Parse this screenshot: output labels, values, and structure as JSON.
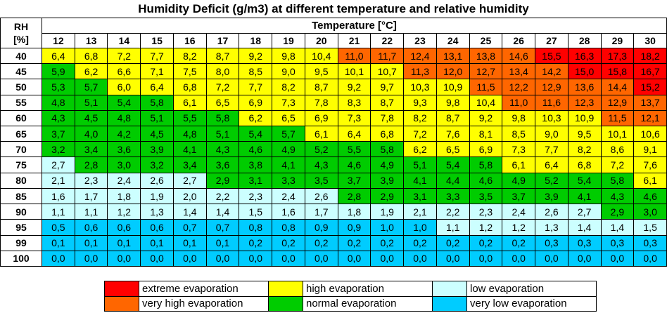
{
  "title": "Humidity Deficit (g/m3) at different temperature and relative humidity",
  "rh_header_line1": "RH",
  "rh_header_line2": "[%]",
  "temp_header": "Temperature [°C]",
  "colors": {
    "extreme": "#ff0000",
    "very_high": "#ff6600",
    "high": "#ffff00",
    "normal": "#00cc00",
    "low": "#ccffff",
    "very_low": "#00ccff"
  },
  "legend": [
    {
      "label": "extreme evaporation",
      "level": "extreme"
    },
    {
      "label": "high evaporation",
      "level": "high"
    },
    {
      "label": "low evaporation",
      "level": "low"
    },
    {
      "label": "very high evaporation",
      "level": "very_high"
    },
    {
      "label": "normal evaporation",
      "level": "normal"
    },
    {
      "label": "very low evaporation",
      "level": "very_low"
    }
  ],
  "chart_data": {
    "type": "heatmap",
    "title": "Humidity Deficit (g/m3) at different temperature and relative humidity",
    "xlabel": "Temperature [°C]",
    "ylabel": "RH [%]",
    "x": [
      "12",
      "13",
      "14",
      "15",
      "16",
      "17",
      "18",
      "19",
      "20",
      "21",
      "22",
      "23",
      "24",
      "25",
      "26",
      "27",
      "28",
      "29",
      "30"
    ],
    "y": [
      "40",
      "45",
      "50",
      "55",
      "60",
      "65",
      "70",
      "75",
      "80",
      "85",
      "90",
      "95",
      "99",
      "100"
    ],
    "values": [
      [
        "6,4",
        "6,8",
        "7,2",
        "7,7",
        "8,2",
        "8,7",
        "9,2",
        "9,8",
        "10,4",
        "11,0",
        "11,7",
        "12,4",
        "13,1",
        "13,8",
        "14,6",
        "15,5",
        "16,3",
        "17,3",
        "18,2"
      ],
      [
        "5,9",
        "6,2",
        "6,6",
        "7,1",
        "7,5",
        "8,0",
        "8,5",
        "9,0",
        "9,5",
        "10,1",
        "10,7",
        "11,3",
        "12,0",
        "12,7",
        "13,4",
        "14,2",
        "15,0",
        "15,8",
        "16,7"
      ],
      [
        "5,3",
        "5,7",
        "6,0",
        "6,4",
        "6,8",
        "7,2",
        "7,7",
        "8,2",
        "8,7",
        "9,2",
        "9,7",
        "10,3",
        "10,9",
        "11,5",
        "12,2",
        "12,9",
        "13,6",
        "14,4",
        "15,2"
      ],
      [
        "4,8",
        "5,1",
        "5,4",
        "5,8",
        "6,1",
        "6,5",
        "6,9",
        "7,3",
        "7,8",
        "8,3",
        "8,7",
        "9,3",
        "9,8",
        "10,4",
        "11,0",
        "11,6",
        "12,3",
        "12,9",
        "13,7"
      ],
      [
        "4,3",
        "4,5",
        "4,8",
        "5,1",
        "5,5",
        "5,8",
        "6,2",
        "6,5",
        "6,9",
        "7,3",
        "7,8",
        "8,2",
        "8,7",
        "9,2",
        "9,8",
        "10,3",
        "10,9",
        "11,5",
        "12,1"
      ],
      [
        "3,7",
        "4,0",
        "4,2",
        "4,5",
        "4,8",
        "5,1",
        "5,4",
        "5,7",
        "6,1",
        "6,4",
        "6,8",
        "7,2",
        "7,6",
        "8,1",
        "8,5",
        "9,0",
        "9,5",
        "10,1",
        "10,6"
      ],
      [
        "3,2",
        "3,4",
        "3,6",
        "3,9",
        "4,1",
        "4,3",
        "4,6",
        "4,9",
        "5,2",
        "5,5",
        "5,8",
        "6,2",
        "6,5",
        "6,9",
        "7,3",
        "7,7",
        "8,2",
        "8,6",
        "9,1"
      ],
      [
        "2,7",
        "2,8",
        "3,0",
        "3,2",
        "3,4",
        "3,6",
        "3,8",
        "4,1",
        "4,3",
        "4,6",
        "4,9",
        "5,1",
        "5,4",
        "5,8",
        "6,1",
        "6,4",
        "6,8",
        "7,2",
        "7,6"
      ],
      [
        "2,1",
        "2,3",
        "2,4",
        "2,6",
        "2,7",
        "2,9",
        "3,1",
        "3,3",
        "3,5",
        "3,7",
        "3,9",
        "4,1",
        "4,4",
        "4,6",
        "4,9",
        "5,2",
        "5,4",
        "5,8",
        "6,1"
      ],
      [
        "1,6",
        "1,7",
        "1,8",
        "1,9",
        "2,0",
        "2,2",
        "2,3",
        "2,4",
        "2,6",
        "2,8",
        "2,9",
        "3,1",
        "3,3",
        "3,5",
        "3,7",
        "3,9",
        "4,1",
        "4,3",
        "4,6"
      ],
      [
        "1,1",
        "1,1",
        "1,2",
        "1,3",
        "1,4",
        "1,4",
        "1,5",
        "1,6",
        "1,7",
        "1,8",
        "1,9",
        "2,1",
        "2,2",
        "2,3",
        "2,4",
        "2,6",
        "2,7",
        "2,9",
        "3,0"
      ],
      [
        "0,5",
        "0,6",
        "0,6",
        "0,6",
        "0,7",
        "0,7",
        "0,8",
        "0,8",
        "0,9",
        "0,9",
        "1,0",
        "1,0",
        "1,1",
        "1,2",
        "1,2",
        "1,3",
        "1,4",
        "1,4",
        "1,5"
      ],
      [
        "0,1",
        "0,1",
        "0,1",
        "0,1",
        "0,1",
        "0,1",
        "0,2",
        "0,2",
        "0,2",
        "0,2",
        "0,2",
        "0,2",
        "0,2",
        "0,2",
        "0,2",
        "0,3",
        "0,3",
        "0,3",
        "0,3"
      ],
      [
        "0,0",
        "0,0",
        "0,0",
        "0,0",
        "0,0",
        "0,0",
        "0,0",
        "0,0",
        "0,0",
        "0,0",
        "0,0",
        "0,0",
        "0,0",
        "0,0",
        "0,0",
        "0,0",
        "0,0",
        "0,0",
        "0,0"
      ]
    ],
    "levels": [
      [
        "high",
        "high",
        "high",
        "high",
        "high",
        "high",
        "high",
        "high",
        "high",
        "very_high",
        "very_high",
        "very_high",
        "very_high",
        "very_high",
        "very_high",
        "extreme",
        "extreme",
        "extreme",
        "extreme"
      ],
      [
        "normal",
        "high",
        "high",
        "high",
        "high",
        "high",
        "high",
        "high",
        "high",
        "high",
        "high",
        "very_high",
        "very_high",
        "very_high",
        "very_high",
        "very_high",
        "extreme",
        "extreme",
        "extreme"
      ],
      [
        "normal",
        "normal",
        "high",
        "high",
        "high",
        "high",
        "high",
        "high",
        "high",
        "high",
        "high",
        "high",
        "high",
        "very_high",
        "very_high",
        "very_high",
        "very_high",
        "very_high",
        "extreme"
      ],
      [
        "normal",
        "normal",
        "normal",
        "normal",
        "high",
        "high",
        "high",
        "high",
        "high",
        "high",
        "high",
        "high",
        "high",
        "high",
        "very_high",
        "very_high",
        "very_high",
        "very_high",
        "very_high"
      ],
      [
        "normal",
        "normal",
        "normal",
        "normal",
        "normal",
        "normal",
        "high",
        "high",
        "high",
        "high",
        "high",
        "high",
        "high",
        "high",
        "high",
        "high",
        "high",
        "very_high",
        "very_high"
      ],
      [
        "normal",
        "normal",
        "normal",
        "normal",
        "normal",
        "normal",
        "normal",
        "normal",
        "high",
        "high",
        "high",
        "high",
        "high",
        "high",
        "high",
        "high",
        "high",
        "high",
        "high"
      ],
      [
        "normal",
        "normal",
        "normal",
        "normal",
        "normal",
        "normal",
        "normal",
        "normal",
        "normal",
        "normal",
        "normal",
        "high",
        "high",
        "high",
        "high",
        "high",
        "high",
        "high",
        "high"
      ],
      [
        "low",
        "normal",
        "normal",
        "normal",
        "normal",
        "normal",
        "normal",
        "normal",
        "normal",
        "normal",
        "normal",
        "normal",
        "normal",
        "normal",
        "high",
        "high",
        "high",
        "high",
        "high"
      ],
      [
        "low",
        "low",
        "low",
        "low",
        "low",
        "normal",
        "normal",
        "normal",
        "normal",
        "normal",
        "normal",
        "normal",
        "normal",
        "normal",
        "normal",
        "normal",
        "normal",
        "normal",
        "high"
      ],
      [
        "low",
        "low",
        "low",
        "low",
        "low",
        "low",
        "low",
        "low",
        "low",
        "normal",
        "normal",
        "normal",
        "normal",
        "normal",
        "normal",
        "normal",
        "normal",
        "normal",
        "normal"
      ],
      [
        "low",
        "low",
        "low",
        "low",
        "low",
        "low",
        "low",
        "low",
        "low",
        "low",
        "low",
        "low",
        "low",
        "low",
        "low",
        "low",
        "low",
        "normal",
        "normal"
      ],
      [
        "very_low",
        "very_low",
        "very_low",
        "very_low",
        "very_low",
        "very_low",
        "very_low",
        "very_low",
        "very_low",
        "very_low",
        "very_low",
        "very_low",
        "low",
        "low",
        "low",
        "low",
        "low",
        "low",
        "low"
      ],
      [
        "very_low",
        "very_low",
        "very_low",
        "very_low",
        "very_low",
        "very_low",
        "very_low",
        "very_low",
        "very_low",
        "very_low",
        "very_low",
        "very_low",
        "very_low",
        "very_low",
        "very_low",
        "very_low",
        "very_low",
        "very_low",
        "very_low"
      ],
      [
        "very_low",
        "very_low",
        "very_low",
        "very_low",
        "very_low",
        "very_low",
        "very_low",
        "very_low",
        "very_low",
        "very_low",
        "very_low",
        "very_low",
        "very_low",
        "very_low",
        "very_low",
        "very_low",
        "very_low",
        "very_low",
        "very_low"
      ]
    ]
  }
}
